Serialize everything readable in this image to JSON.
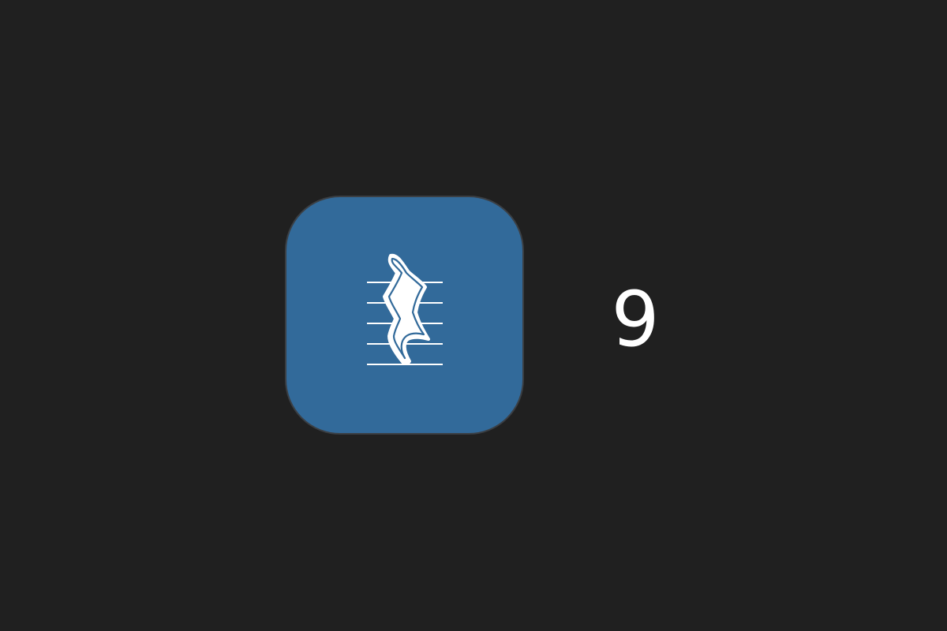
{
  "app_icon": {
    "icon": "music-rest-icon",
    "background_color": "#326A9A",
    "glyph_color": "#FFFFFF"
  },
  "count_label": "9"
}
